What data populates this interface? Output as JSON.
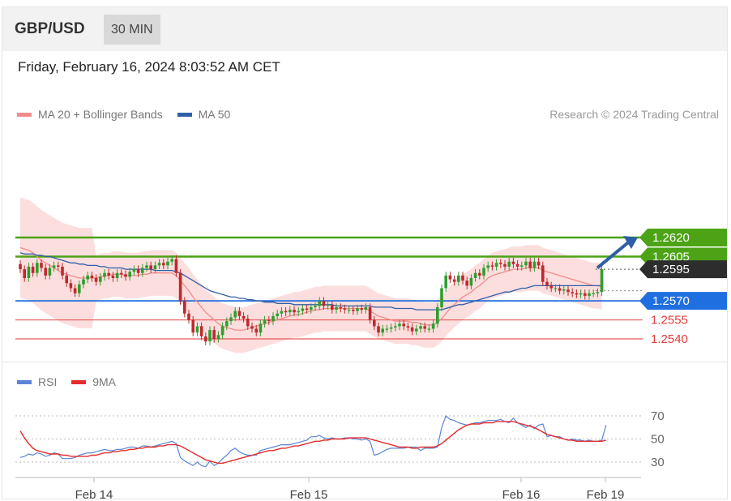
{
  "header": {
    "symbol": "GBP/USD",
    "timeframe": "30 MIN"
  },
  "datetime": "Friday, February 16, 2024 8:03:52 AM CET",
  "legend_main": [
    {
      "label": "MA 20 + Bollinger Bands",
      "color": "#f28b8b"
    },
    {
      "label": "MA 50",
      "color": "#2f5fa8"
    }
  ],
  "credit": "Research © 2024 Trading Central",
  "legend_rsi": [
    {
      "label": "RSI",
      "color": "#5b84d6"
    },
    {
      "label": "9MA",
      "color": "#e52b2b"
    }
  ],
  "colors": {
    "resistance": "#4ca315",
    "pivot": "#1f6fe0",
    "support": "#e03c3c",
    "current_price_bg": "#2d2d2d",
    "candle_up": "#2e9e2e",
    "candle_down": "#c0282c",
    "band_fill": "#fbd3d3",
    "arrow": "#2e5fa6"
  },
  "chart_data": [
    {
      "type": "candlestick",
      "title": "GBP/USD 30 MIN",
      "x_ticks": [
        "Feb 14",
        "Feb 15",
        "Feb 16",
        "Feb 19"
      ],
      "ylim": [
        1.2522,
        1.2648
      ],
      "levels": [
        {
          "value": 1.262,
          "label": "1.2620",
          "kind": "resistance"
        },
        {
          "value": 1.2605,
          "label": "1.2605",
          "kind": "resistance"
        },
        {
          "value": 1.2595,
          "label": "1.2595",
          "kind": "current"
        },
        {
          "value": 1.257,
          "label": "1.2570",
          "kind": "pivot"
        },
        {
          "value": 1.2555,
          "label": "1.2555",
          "kind": "support"
        },
        {
          "value": 1.254,
          "label": "1.2540",
          "kind": "support"
        }
      ],
      "close": [
        1.2595,
        1.2588,
        1.2597,
        1.2592,
        1.26,
        1.2596,
        1.259,
        1.2596,
        1.2598,
        1.2597,
        1.259,
        1.2584,
        1.258,
        1.2576,
        1.2583,
        1.2587,
        1.259,
        1.2588,
        1.2585,
        1.2589,
        1.2592,
        1.259,
        1.2588,
        1.2592,
        1.2591,
        1.2589,
        1.2593,
        1.2595,
        1.2592,
        1.2596,
        1.2598,
        1.2595,
        1.2598,
        1.26,
        1.2598,
        1.2601,
        1.2603,
        1.2592,
        1.257,
        1.256,
        1.2555,
        1.2545,
        1.255,
        1.2542,
        1.2538,
        1.2547,
        1.254,
        1.2543,
        1.255,
        1.2554,
        1.2557,
        1.2562,
        1.2558,
        1.2556,
        1.255,
        1.2548,
        1.2545,
        1.2552,
        1.2555,
        1.2554,
        1.2558,
        1.256,
        1.2562,
        1.2561,
        1.2563,
        1.2561,
        1.2562,
        1.2564,
        1.2563,
        1.2565,
        1.2566,
        1.257,
        1.2566,
        1.2567,
        1.2563,
        1.2565,
        1.2564,
        1.2563,
        1.2563,
        1.2562,
        1.2564,
        1.2563,
        1.2565,
        1.2555,
        1.255,
        1.2545,
        1.2548,
        1.2548,
        1.2549,
        1.255,
        1.2552,
        1.255,
        1.2549,
        1.2546,
        1.2548,
        1.255,
        1.2548,
        1.2548,
        1.2552,
        1.2565,
        1.258,
        1.259,
        1.2587,
        1.2585,
        1.259,
        1.2586,
        1.2582,
        1.2588,
        1.2592,
        1.259,
        1.2596,
        1.2598,
        1.2597,
        1.26,
        1.2599,
        1.2597,
        1.2601,
        1.2599,
        1.2597,
        1.2598,
        1.2601,
        1.2596,
        1.2601,
        1.2598,
        1.2585,
        1.2582,
        1.258,
        1.258,
        1.2578,
        1.2579,
        1.2577,
        1.2576,
        1.2575,
        1.2576,
        1.2574,
        1.2576,
        1.2576,
        1.2577,
        1.2595
      ],
      "ma20": [
        1.2612,
        1.2611,
        1.261,
        1.2608,
        1.2605,
        1.2602,
        1.26,
        1.2598,
        1.2596,
        1.2594,
        1.2592,
        1.2591,
        1.259,
        1.2589,
        1.2588,
        1.2588,
        1.2588,
        1.2588,
        1.2588,
        1.2589,
        1.259,
        1.259,
        1.2591,
        1.2591,
        1.2591,
        1.259,
        1.259,
        1.259,
        1.259,
        1.2591,
        1.2591,
        1.2592,
        1.2592,
        1.2592,
        1.2592,
        1.2592,
        1.2592,
        1.259,
        1.2586,
        1.2582,
        1.2578,
        1.2573,
        1.2569,
        1.2565,
        1.2561,
        1.2558,
        1.2555,
        1.2552,
        1.255,
        1.2549,
        1.2548,
        1.2547,
        1.2547,
        1.2547,
        1.2548,
        1.2549,
        1.255,
        1.2551,
        1.2552,
        1.2553,
        1.2554,
        1.2555,
        1.2556,
        1.2557,
        1.2558,
        1.2559,
        1.2559,
        1.256,
        1.2561,
        1.2562,
        1.2563,
        1.2563,
        1.2564,
        1.2564,
        1.2564,
        1.2564,
        1.2564,
        1.2564,
        1.2564,
        1.2564,
        1.2564,
        1.2564,
        1.2564,
        1.2562,
        1.256,
        1.2558,
        1.2557,
        1.2556,
        1.2555,
        1.2554,
        1.2554,
        1.2554,
        1.2554,
        1.2553,
        1.2553,
        1.2552,
        1.2551,
        1.2551,
        1.2551,
        1.2553,
        1.2556,
        1.256,
        1.2564,
        1.2567,
        1.257,
        1.2573,
        1.2575,
        1.2577,
        1.258,
        1.2582,
        1.2585,
        1.2588,
        1.259,
        1.2591,
        1.2592,
        1.2593,
        1.2594,
        1.2595,
        1.2595,
        1.2595,
        1.2596,
        1.2596,
        1.2596,
        1.2596,
        1.2594,
        1.2593,
        1.2592,
        1.2591,
        1.259,
        1.2589,
        1.2588,
        1.2587,
        1.2586,
        1.2585,
        1.2584,
        1.2583,
        1.2582,
        1.2582,
        1.2581
      ],
      "ma50": [
        1.2608,
        1.2607,
        1.2607,
        1.2607,
        1.2606,
        1.2606,
        1.2605,
        1.2605,
        1.2604,
        1.2603,
        1.2602,
        1.2601,
        1.26,
        1.26,
        1.2599,
        1.2599,
        1.2598,
        1.2598,
        1.2598,
        1.2597,
        1.2597,
        1.2596,
        1.2596,
        1.2596,
        1.2596,
        1.2595,
        1.2595,
        1.2595,
        1.2595,
        1.2595,
        1.2595,
        1.2595,
        1.2594,
        1.2594,
        1.2594,
        1.2594,
        1.2594,
        1.2593,
        1.2592,
        1.259,
        1.2588,
        1.2586,
        1.2584,
        1.2582,
        1.258,
        1.2578,
        1.2577,
        1.2576,
        1.2575,
        1.2574,
        1.2573,
        1.2573,
        1.2572,
        1.2572,
        1.2571,
        1.2571,
        1.257,
        1.257,
        1.2569,
        1.2569,
        1.2569,
        1.2568,
        1.2568,
        1.2568,
        1.2568,
        1.2567,
        1.2567,
        1.2567,
        1.2567,
        1.2567,
        1.2567,
        1.2567,
        1.2567,
        1.2567,
        1.2567,
        1.2566,
        1.2566,
        1.2566,
        1.2566,
        1.2566,
        1.2566,
        1.2566,
        1.2566,
        1.2566,
        1.2565,
        1.2565,
        1.2565,
        1.2565,
        1.2565,
        1.2564,
        1.2564,
        1.2564,
        1.2564,
        1.2564,
        1.2563,
        1.2563,
        1.2563,
        1.2563,
        1.2563,
        1.2563,
        1.2563,
        1.2564,
        1.2565,
        1.2566,
        1.2567,
        1.2567,
        1.2568,
        1.2569,
        1.257,
        1.2571,
        1.2572,
        1.2573,
        1.2574,
        1.2575,
        1.2576,
        1.2577,
        1.2577,
        1.2578,
        1.2579,
        1.258,
        1.258,
        1.2581,
        1.2582,
        1.2582,
        1.2582,
        1.2582,
        1.2582,
        1.2582,
        1.2582,
        1.2582,
        1.2582,
        1.2582,
        1.2582,
        1.2582,
        1.2582,
        1.2582,
        1.2582,
        1.2582,
        1.2582
      ]
    },
    {
      "type": "line",
      "title": "RSI",
      "x_ticks": [
        "Feb 14",
        "Feb 15",
        "Feb 16",
        "Feb 19"
      ],
      "ylim": [
        20,
        80
      ],
      "y_ticks": [
        70,
        50,
        30
      ],
      "series": [
        {
          "name": "RSI",
          "values": [
            34,
            35,
            37,
            36,
            38,
            37,
            35,
            36,
            38,
            37,
            33,
            33,
            33,
            34,
            36,
            37,
            38,
            38,
            39,
            40,
            41,
            40,
            40,
            41,
            41,
            42,
            43,
            43,
            42,
            44,
            44,
            43,
            44,
            45,
            46,
            47,
            48,
            46,
            34,
            31,
            29,
            27,
            30,
            27,
            26,
            31,
            27,
            29,
            33,
            36,
            40,
            42,
            39,
            37,
            36,
            36,
            36,
            40,
            41,
            42,
            43,
            44,
            45,
            45,
            45,
            46,
            47,
            48,
            49,
            52,
            52,
            53,
            51,
            50,
            51,
            50,
            50,
            51,
            51,
            50,
            50,
            49,
            50,
            48,
            36,
            37,
            39,
            41,
            42,
            42,
            42,
            42,
            43,
            43,
            43,
            40,
            42,
            42,
            42,
            43,
            60,
            70,
            67,
            66,
            64,
            63,
            62,
            63,
            64,
            64,
            65,
            66,
            66,
            66,
            67,
            65,
            64,
            68,
            64,
            62,
            60,
            62,
            59,
            62,
            63,
            52,
            53,
            52,
            52,
            50,
            49,
            50,
            49,
            49,
            48,
            49,
            48,
            48,
            49,
            62
          ]
        },
        {
          "name": "9MA",
          "values": [
            57,
            51,
            46,
            42,
            40,
            39,
            38,
            37,
            37,
            37,
            36,
            36,
            35,
            35,
            35,
            35,
            35,
            36,
            36,
            37,
            38,
            38,
            39,
            39,
            40,
            40,
            41,
            41,
            42,
            42,
            43,
            43,
            43,
            44,
            44,
            45,
            45,
            45,
            44,
            42,
            40,
            38,
            36,
            34,
            32,
            31,
            30,
            29,
            29,
            30,
            31,
            32,
            33,
            34,
            35,
            36,
            37,
            38,
            39,
            40,
            40,
            41,
            42,
            42,
            43,
            44,
            44,
            45,
            46,
            47,
            48,
            48,
            49,
            49,
            50,
            50,
            50,
            50,
            51,
            51,
            51,
            51,
            51,
            50,
            49,
            48,
            47,
            46,
            45,
            44,
            43,
            43,
            43,
            42,
            42,
            43,
            43,
            43,
            43,
            44,
            46,
            49,
            52,
            55,
            58,
            60,
            62,
            63,
            63,
            63,
            64,
            64,
            64,
            65,
            65,
            65,
            65,
            65,
            64,
            63,
            62,
            61,
            60,
            58,
            56,
            54,
            53,
            52,
            51,
            50,
            49,
            49,
            48,
            48,
            48,
            48,
            48,
            48,
            48,
            49
          ]
        }
      ]
    }
  ]
}
